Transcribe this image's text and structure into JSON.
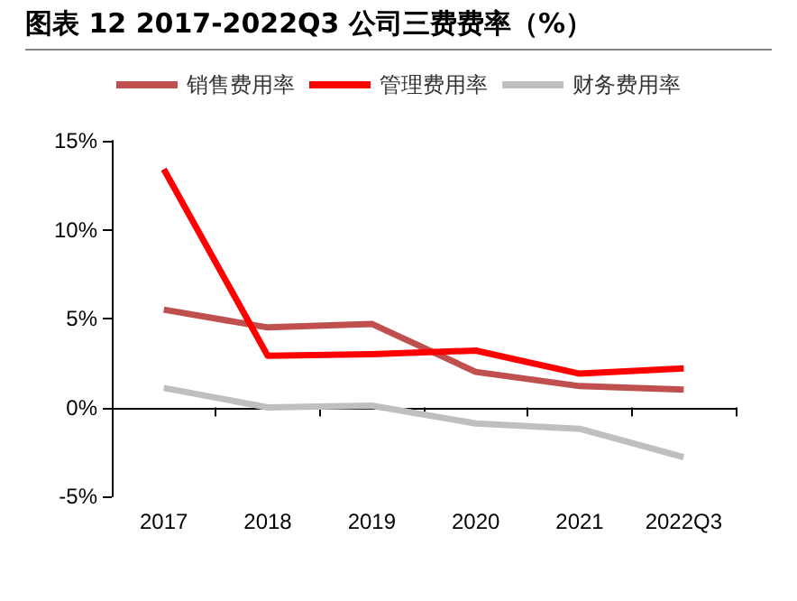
{
  "chart_data": {
    "type": "line",
    "title": "图表 12 2017-2022Q3 公司三费费率（%）",
    "categories": [
      "2017",
      "2018",
      "2019",
      "2020",
      "2021",
      "2022Q3"
    ],
    "series": [
      {
        "name": "销售费用率",
        "color": "#c0504d",
        "values": [
          5.5,
          4.5,
          4.7,
          2.0,
          1.2,
          1.0
        ]
      },
      {
        "name": "管理费用率",
        "color": "#ff0000",
        "values": [
          13.4,
          2.9,
          3.0,
          3.2,
          1.9,
          2.2
        ]
      },
      {
        "name": "财务费用率",
        "color": "#bfbfbf",
        "values": [
          1.1,
          0.0,
          0.1,
          -0.9,
          -1.2,
          -2.8
        ]
      }
    ],
    "ylim": [
      -5,
      15
    ],
    "yticks": [
      {
        "value": -5,
        "label": "-5%"
      },
      {
        "value": 0,
        "label": "0%"
      },
      {
        "value": 5,
        "label": "5%"
      },
      {
        "value": 10,
        "label": "10%"
      },
      {
        "value": 15,
        "label": "15%"
      }
    ],
    "legend": "top",
    "marker": "none",
    "line_style": "solid"
  }
}
